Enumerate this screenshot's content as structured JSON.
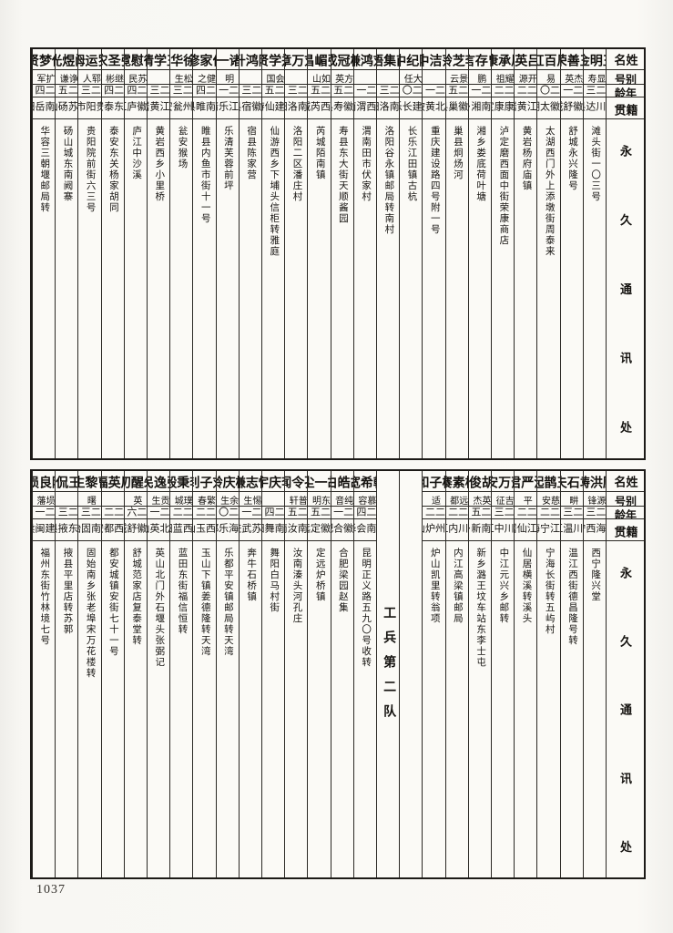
{
  "page": {
    "number": "1037"
  },
  "headers": {
    "name": "姓名",
    "alias": "别号",
    "age": "年龄",
    "native": "籍贯",
    "address": "永久通讯处"
  },
  "unit_label": "工兵第二队",
  "bands": [
    {
      "entries": [
        {
          "name": "王明金",
          "alias": "显寿",
          "age": "二三",
          "native": "四川达县",
          "address": "滩头街一〇三号"
        },
        {
          "name": "王善荣",
          "alias": "杰英",
          "age": "二一",
          "native": "安徽舒城",
          "address": "舒城永兴隆号"
        },
        {
          "name": "周百虹",
          "alias": "易",
          "age": "二〇",
          "native": "安徽太湖",
          "address": "太湖西门外上添墩街周泰来"
        },
        {
          "name": "吕英",
          "alias": "开源",
          "age": "二二",
          "native": "浙江黄岩",
          "address": "黄岩杨府庙镇"
        },
        {
          "name": "周承康",
          "alias": "耀祖",
          "age": "二二",
          "native": "西康康定",
          "address": "泸定磨西面中街荣康商店"
        },
        {
          "name": "曾存言",
          "alias": "鹏",
          "age": "二一",
          "native": "湖南湘乡",
          "address": "湘乡娄底荷叶塘"
        },
        {
          "name": "李芝龄",
          "alias": "景云",
          "age": "二五",
          "native": "安徽巢县",
          "address": "巢县炯炀河"
        },
        {
          "name": "范洁中",
          "alias": "",
          "age": "二一",
          "native": "湖北黄陂",
          "address": "重庆建设路四号附一号"
        },
        {
          "name": "陈纪中",
          "alias": "大任",
          "age": "二〇",
          "native": "福建长乐",
          "address": "长乐江田镇古杭"
        },
        {
          "name": "南集梧",
          "alias": "",
          "age": "二三",
          "native": "河南洛阳",
          "address": "洛阳谷永镇邮局转南村"
        },
        {
          "name": "刘鸿谦",
          "alias": "",
          "age": "二一",
          "native": "陕西渭南",
          "address": "渭南田市伏家村"
        },
        {
          "name": "柏冠成",
          "alias": "方英",
          "age": "二五",
          "native": "安徽寿县",
          "address": "寿县东大街天顺酱园"
        },
        {
          "name": "张嵋昌",
          "alias": "如山",
          "age": "二五",
          "native": "山西芮城",
          "address": "芮城陌南镇"
        },
        {
          "name": "刘万章",
          "alias": "",
          "age": "二三",
          "native": "河南洛阳",
          "address": "洛阳二区潘庄村"
        },
        {
          "name": "郑学贤",
          "alias": "会国",
          "age": "二五",
          "native": "福建仙游",
          "address": "仙游西乡下埔头信柜转雅庭"
        },
        {
          "name": "陈鸿升",
          "alias": "",
          "age": "二三",
          "native": "安徽宿县",
          "address": "宿县陈家营"
        },
        {
          "name": "诸一",
          "alias": "明",
          "age": "二一",
          "native": "浙江乐清",
          "address": "乐清芙蓉前坪"
        },
        {
          "name": "何家修",
          "alias": "健之",
          "age": "二四",
          "native": "河南睢县",
          "address": "睢县内鱼市街十一号"
        },
        {
          "name": "徐华",
          "alias": "松生",
          "age": "二三",
          "native": "贵州瓮安",
          "address": "瓮安猴场"
        },
        {
          "name": "王学清",
          "alias": "",
          "age": "二三",
          "native": "浙江黄岩",
          "address": "黄岩西乡小里桥"
        },
        {
          "name": "徐慰霓",
          "alias": "苏民",
          "age": "二四",
          "native": "安徽庐江",
          "address": "庐江中沙溪"
        },
        {
          "name": "张圣农",
          "alias": "继彬",
          "age": "二四",
          "native": "山东泰安",
          "address": "泰安东关杨家胡同"
        },
        {
          "name": "罗运坶",
          "alias": "郓人",
          "age": "二三",
          "native": "贵阳市",
          "address": "贵阳院前街六三号"
        },
        {
          "name": "阚煜光",
          "alias": "诤谦",
          "age": "二五",
          "native": "江苏砀山",
          "address": "砀山城东南阙寨"
        },
        {
          "name": "傅梦贤",
          "alias": "扩军",
          "age": "二四",
          "native": "湖南岳阳",
          "address": "华容三朝堰邮局转"
        }
      ]
    },
    {
      "entries": [
        {
          "name": "顾洪畴",
          "alias": "源锋",
          "age": "二三",
          "native": "青海西宁",
          "address": "西宁隆兴堂"
        },
        {
          "name": "袁石夫",
          "alias": "畊",
          "age": "二三",
          "native": "四川温江",
          "address": "温江西街德昌隆号转"
        },
        {
          "name": "王鹊起",
          "alias": "慈安",
          "age": "二二",
          "native": "浙江宁海",
          "address": "宁海长街转五屿村"
        },
        {
          "name": "沈严君",
          "alias": "平",
          "age": "二二",
          "native": "浙江仙居",
          "address": "仙居横溪转溪头"
        },
        {
          "name": "萧万安",
          "alias": "吉征",
          "age": "二三",
          "native": "四川中江",
          "address": "中江元兴乡邮转"
        },
        {
          "name": "胡俊",
          "alias": "英杰",
          "age": "二五",
          "native": "河南新乡",
          "address": "新乡潞王坟车站东李士屯"
        },
        {
          "name": "杨素褰",
          "alias": "远都",
          "age": "二二",
          "native": "四川内江",
          "address": "内江高梁镇邮局"
        },
        {
          "name": "杨子和",
          "alias": "适",
          "age": "二二",
          "native": "贵州炉山",
          "address": "炉山凯里转翁项"
        },
        {
          "divider": true,
          "label": ""
        },
        {
          "divider": true,
          "label": "工兵第二队"
        },
        {
          "name": "韩希宽",
          "alias": "慕容",
          "age": "二四",
          "native": "云南会泽",
          "address": "昆明正义路五九〇号收转"
        },
        {
          "name": "胡皓白",
          "alias": "纯音",
          "age": "二一",
          "native": "安徽合肥",
          "address": "合肥梁园赵集"
        },
        {
          "name": "胡一尘",
          "alias": "东明",
          "age": "二五",
          "native": "安徽定远",
          "address": "定远炉桥镇"
        },
        {
          "name": "孔令闻",
          "alias": "普轩",
          "age": "二五",
          "native": "河南汝南",
          "address": "汝南溱头河孔庄"
        },
        {
          "name": "李庆宇",
          "alias": "",
          "age": "二四",
          "native": "河南舞阳",
          "address": "舞阳白马村街"
        },
        {
          "name": "恽志谦",
          "alias": "惕生",
          "age": "二一",
          "native": "江苏武进",
          "address": "奔牛石桥镇"
        },
        {
          "name": "杨庆龄",
          "alias": "余生",
          "age": "二〇",
          "native": "青海乐都",
          "address": "乐都平安镇邮局转天湾"
        },
        {
          "name": "刘子钊",
          "alias": "繁春",
          "age": "二二",
          "native": "江西玉山",
          "address": "玉山下镇姜德隆转天湾"
        },
        {
          "name": "李秉毅",
          "alias": "璞城",
          "age": "二二",
          "native": "陕西蓝田",
          "address": "蓝田东街福信恒转"
        },
        {
          "name": "张逸民",
          "alias": "贡生",
          "age": "二一",
          "native": "湖北英山",
          "address": "英山北门外石堰头张弼记"
        },
        {
          "name": "朱醒初",
          "alias": "英",
          "age": "二六",
          "native": "安徽舒城",
          "address": "舒城范家店复泰堂转"
        },
        {
          "name": "周英福",
          "alias": "",
          "age": "二二",
          "native": "广西都安",
          "address": "都安城镇安街七十一号"
        },
        {
          "name": "曹黎生",
          "alias": "曙",
          "age": "二三",
          "native": "河南固始",
          "address": "固始南乡张老埠宋万花楼转"
        },
        {
          "name": "王侃",
          "alias": "",
          "age": "二三",
          "native": "山东掖县",
          "address": "掖县平里店转苏郭"
        },
        {
          "name": "陈良埙",
          "alias": "埙藩",
          "age": "二一",
          "native": "福建闽侯",
          "address": "福州东街竹林境七号"
        }
      ]
    }
  ]
}
